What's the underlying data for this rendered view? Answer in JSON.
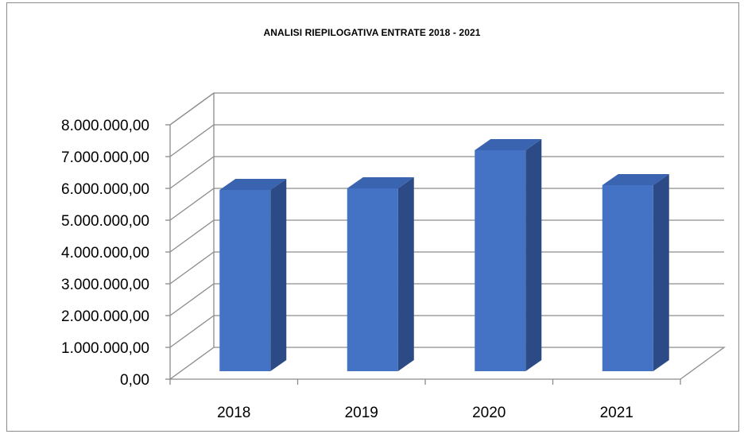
{
  "chart_data": {
    "type": "bar",
    "title": "ANALISI RIEPILOGATIVA ENTRATE 2018 - 2021",
    "xlabel": "",
    "ylabel": "",
    "categories": [
      "2018",
      "2019",
      "2020",
      "2021"
    ],
    "values": [
      5950000,
      6000000,
      7200000,
      6100000
    ],
    "ylim": [
      0,
      8000000
    ],
    "ytick_values": [
      0,
      1000000,
      2000000,
      3000000,
      4000000,
      5000000,
      6000000,
      7000000,
      8000000
    ],
    "ytick_labels": [
      "0,00",
      "1.000.000,00",
      "2.000.000,00",
      "3.000.000,00",
      "4.000.000,00",
      "5.000.000,00",
      "6.000.000,00",
      "7.000.000,00",
      "8.000.000,00"
    ],
    "grid": true,
    "legend": "none",
    "style": "3d-column",
    "colors": {
      "bar_front": "#4472c4",
      "bar_side": "#2c4a86",
      "bar_top": "#3a63b0",
      "grid": "#8c8c8c"
    }
  }
}
